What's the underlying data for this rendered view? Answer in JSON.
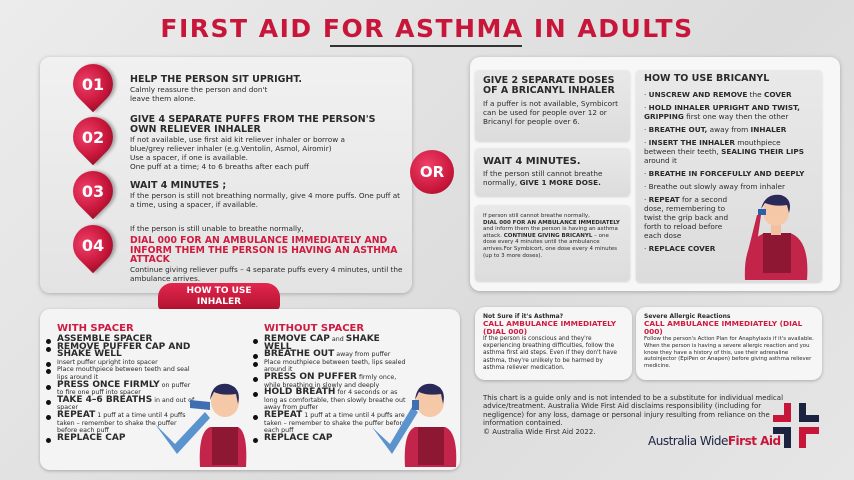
{
  "title": "FIRST AID FOR ASTHMA IN ADULTS",
  "colors": {
    "accent": "#c8163a",
    "dark": "#2a2a2a",
    "navy": "#1c2340"
  },
  "steps": [
    {
      "num": "01",
      "heading": "HELP THE PERSON SIT UPRIGHT.",
      "text": "Calmly reassure the person and don't leave them alone."
    },
    {
      "num": "02",
      "heading": "GIVE 4 SEPARATE PUFFS FROM THE PERSON'S OWN RELIEVER INHALER",
      "text": [
        "If not available, use first aid kit reliever inhaler or borrow a blue/grey reliever inhaler (e.g.Ventolin, Asmol, Airomir)",
        "Use a spacer, if one is available.",
        "One puff at a time; 4 to 6 breaths after each puff"
      ]
    },
    {
      "num": "03",
      "heading": "WAIT 4 MINUTES ;",
      "text": "If the person is still not breathing normally, give 4 more puffs. One puff at a time, using a spacer, if available."
    },
    {
      "num": "04",
      "intro": "If the person is still unable to breathe normally,",
      "heading": "DIAL 000 FOR AN AMBULANCE IMMEDIATELY AND INFORM THEM THE PERSON IS HAVING AN ASTHMA ATTACK",
      "text": "Continue giving reliever puffs – 4 separate puffs every 4 minutes, until the ambulance arrives."
    }
  ],
  "or_label": "OR",
  "bricanyl": {
    "doses_heading": "GIVE 2 SEPARATE DOSES OF A BRICANYL INHALER",
    "doses_text": "If a puffer is not available, Symbicort can be used for people over 12 or Bricanyl for people over 6.",
    "wait_heading": "WAIT 4 MINUTES.",
    "wait_text": "If the person still cannot breathe normally,",
    "wait_bold": "GIVE 1 MORE DOSE.",
    "dial_intro": "If person still cannot breathe normally,",
    "dial_bold": "DIAL 000 FOR AN AMBULANCE IMMEDIATELY",
    "dial_text": "and inform them the person is having an asthma attack.",
    "dial_bold2": "CONTINUE GIVING BRICANYL",
    "dial_text2": "– one dose every 4 minutes until the ambulance arrives.For Symbicort, one dose every 4 minutes (up to 3 more doses).",
    "how_heading": "HOW TO USE BRICANYL",
    "how_steps": [
      {
        "b": "UNSCREW AND REMOVE",
        "t": " the ",
        "b2": "COVER",
        "t2": ""
      },
      {
        "b": "HOLD INHALER UPRIGHT AND TWIST, GRIPPING",
        "t": " first one way then the other",
        "b2": "",
        "t2": ""
      },
      {
        "b": "BREATHE OUT,",
        "t": " away from ",
        "b2": "INHALER",
        "t2": ""
      },
      {
        "b": "INSERT THE INHALER",
        "t": " mouthpiece between their teeth, ",
        "b2": "SEALING THEIR LIPS",
        "t2": " around it"
      },
      {
        "b": "BREATHE IN FORCEFULLY AND DEEPLY",
        "t": "",
        "b2": "",
        "t2": ""
      },
      {
        "b": "",
        "t": "Breathe out slowly away from inhaler",
        "b2": "",
        "t2": ""
      },
      {
        "b": "REPEAT",
        "t": " for a second dose, remembering to twist the grip back and forth to reload before each dose",
        "b2": "",
        "t2": ""
      },
      {
        "b": "REPLACE COVER",
        "t": "",
        "b2": "",
        "t2": ""
      }
    ]
  },
  "how_to_use_label": "HOW TO USE INHALER",
  "with_spacer": {
    "heading": "WITH SPACER",
    "items": [
      {
        "b": "ASSEMBLE SPACER",
        "t": ""
      },
      {
        "b": "REMOVE PUFFER CAP AND SHAKE WELL",
        "t": ""
      },
      {
        "b": "",
        "t": "Insert puffer upright into spacer"
      },
      {
        "b": "",
        "t": "Place mouthpiece between teeth and seal lips around it"
      },
      {
        "b": "PRESS ONCE FIRMLY",
        "t": " on puffer to fire one puff into spacer"
      },
      {
        "b": "TAKE 4–6 BREATHS",
        "t": " in and out of spacer"
      },
      {
        "b": "REPEAT",
        "t": " 1 puff at a time until 4 puffs taken – remember to shake the puffer before each puff"
      },
      {
        "b": "REPLACE CAP",
        "t": ""
      }
    ]
  },
  "without_spacer": {
    "heading": "WITHOUT SPACER",
    "items": [
      {
        "b": "REMOVE CAP",
        "t": " and ",
        "b2": "SHAKE WELL"
      },
      {
        "b": "BREATHE OUT",
        "t": " away from puffer"
      },
      {
        "b": "",
        "t": "Place mouthpiece between teeth, lips sealed around it"
      },
      {
        "b": "PRESS ON PUFFER",
        "t": " firmly once, while breathing in slowly and deeply"
      },
      {
        "b": "HOLD BREATH",
        "t": " for 4 seconds or as long as comfortable, then slowly breathe out away from puffer"
      },
      {
        "b": "REPEAT",
        "t": " 1 puff at a time until 4 puffs are taken – remember to shake the puffer before each puff"
      },
      {
        "b": "REPLACE CAP",
        "t": ""
      }
    ]
  },
  "not_sure": {
    "label": "Not Sure if it's Asthma?",
    "call": "CALL AMBULANCE IMMEDIATELY (DIAL 000)",
    "text": "If the person is conscious and they're experiencing breathing difficulties, follow the asthma first aid steps. Even if they don't have asthma, they're unlikely to be harmed by asthma reliever medication."
  },
  "allergic": {
    "label": "Severe Allergic Reactions",
    "call": "CALL AMBULANCE IMMEDIATELY (DIAL 000)",
    "text": "Follow the person's Action Plan for Anaphylaxis if it's available. When the person is having a severe allergic reaction and you know they have a history of this, use their adrenaline autoinjector (EpiPen or Anapen) before giving asthma reliever medicine."
  },
  "disclaimer": "This chart is a guide only and is not intended to be a substitute for individual medical advice/treatment. Australia Wide First Aid disclaims responsibility (including for negligence) for any loss, damage or personal injury resulting from reliance on the information contained.",
  "copyright": "© Australia Wide First Aid 2022.",
  "logo": {
    "part1": "Australia Wide",
    "part2": "First Aid"
  }
}
